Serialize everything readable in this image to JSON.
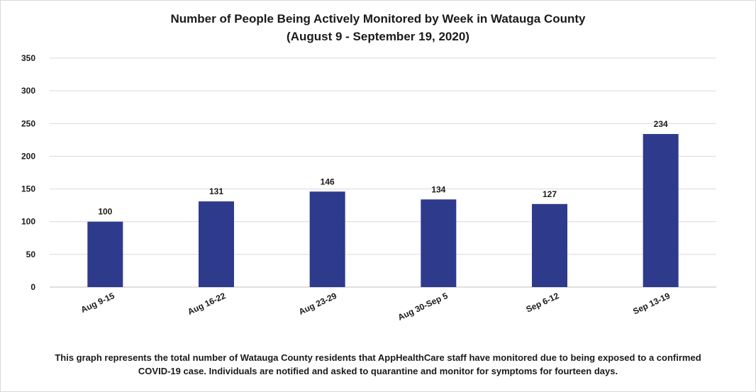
{
  "chart_data": {
    "type": "bar",
    "title": "Number of People Being Actively Monitored by Week in Watauga County",
    "subtitle": "(August 9 - September 19, 2020)",
    "categories": [
      "Aug 9-15",
      "Aug 16-22",
      "Aug 23-29",
      "Aug 30-Sep 5",
      "Sep 6-12",
      "Sep 13-19"
    ],
    "values": [
      100,
      131,
      146,
      134,
      127,
      234
    ],
    "data_labels": [
      "100",
      "131",
      "146",
      "134",
      "127",
      "234"
    ],
    "ylim": [
      0,
      350
    ],
    "yticks": [
      0,
      50,
      100,
      150,
      200,
      250,
      300,
      350
    ],
    "ytick_labels": [
      "0",
      "50",
      "100",
      "150",
      "200",
      "250",
      "300",
      "350"
    ],
    "xlabel": "",
    "ylabel": "",
    "grid": "horizontal",
    "bar_color": "#2e3a8c",
    "grid_color": "#d9d9d9"
  },
  "footnote": {
    "line1": "This graph represents the total number of Watauga County residents that AppHealthCare staff have monitored due to being exposed to a confirmed",
    "line2": "COVID-19 case. Individuals are notified and asked to quarantine and monitor for symptoms for fourteen days."
  }
}
